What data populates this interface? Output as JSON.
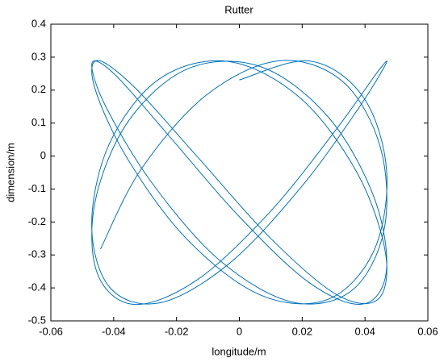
{
  "chart_data": {
    "type": "line",
    "title": "Rutter",
    "x_label": "longitude/m",
    "y_label": "dimension/m",
    "xlim": [
      -0.06,
      0.06
    ],
    "xticks": [
      -0.06,
      -0.04,
      -0.02,
      0,
      0.02,
      0.04,
      0.06
    ],
    "ylim": [
      -0.5,
      0.4
    ],
    "yticks": [
      -0.5,
      -0.4,
      -0.3,
      -0.2,
      -0.1,
      0,
      0.1,
      0.2,
      0.3,
      0.4
    ],
    "series": [
      {
        "color": "#0072bd",
        "x": [
          0,
          0.0225,
          0.0395,
          0.0469,
          0.0427,
          0.0281,
          0.0066,
          -0.0165,
          -0.0356,
          -0.046,
          -0.0451,
          -0.0332,
          -0.0131,
          0.0101,
          0.0309,
          0.0441,
          0.0465,
          0.0375,
          0.0194,
          -0.0035,
          -0.0256,
          -0.0414,
          -0.047,
          -0.0411,
          -0.0252,
          -0.0031,
          0.0197,
          0.0378,
          0.0466,
          0.0439,
          0.0306,
          0.0097,
          -0.0135,
          -0.0335,
          -0.0452,
          -0.0459,
          -0.0353,
          -0.0161,
          0.0071,
          0.0285,
          0.0429,
          0.0468,
          0.0393,
          0.0221,
          -0.0004,
          -0.0229,
          -0.0398,
          -0.0469,
          -0.0426,
          -0.0277,
          -0.0062,
          0.0169,
          0.0359,
          0.0461,
          0.0449,
          0.0329,
          0.0127,
          -0.0105,
          -0.0312,
          -0.0442
        ],
        "values": [
          0.231,
          0.288,
          0.178,
          -0.048,
          -0.29,
          -0.435,
          -0.421,
          -0.254,
          -0.008,
          0.206,
          0.29,
          0.207,
          -0.005,
          -0.251,
          -0.42,
          -0.435,
          -0.293,
          -0.051,
          0.176,
          0.287,
          0.233,
          0.037,
          -0.211,
          -0.4,
          -0.445,
          -0.325,
          -0.094,
          0.143,
          0.279,
          0.254,
          0.078,
          -0.17,
          -0.376,
          -0.45,
          -0.356,
          -0.138,
          0.106,
          0.266,
          0.27,
          0.116,
          -0.126,
          -0.348,
          -0.449,
          -0.383,
          -0.18,
          0.067,
          0.249,
          0.282,
          0.152,
          -0.083,
          -0.317,
          -0.443,
          -0.407,
          -0.222,
          0.026,
          0.226,
          0.289,
          0.185,
          -0.039,
          -0.282
        ]
      }
    ]
  }
}
